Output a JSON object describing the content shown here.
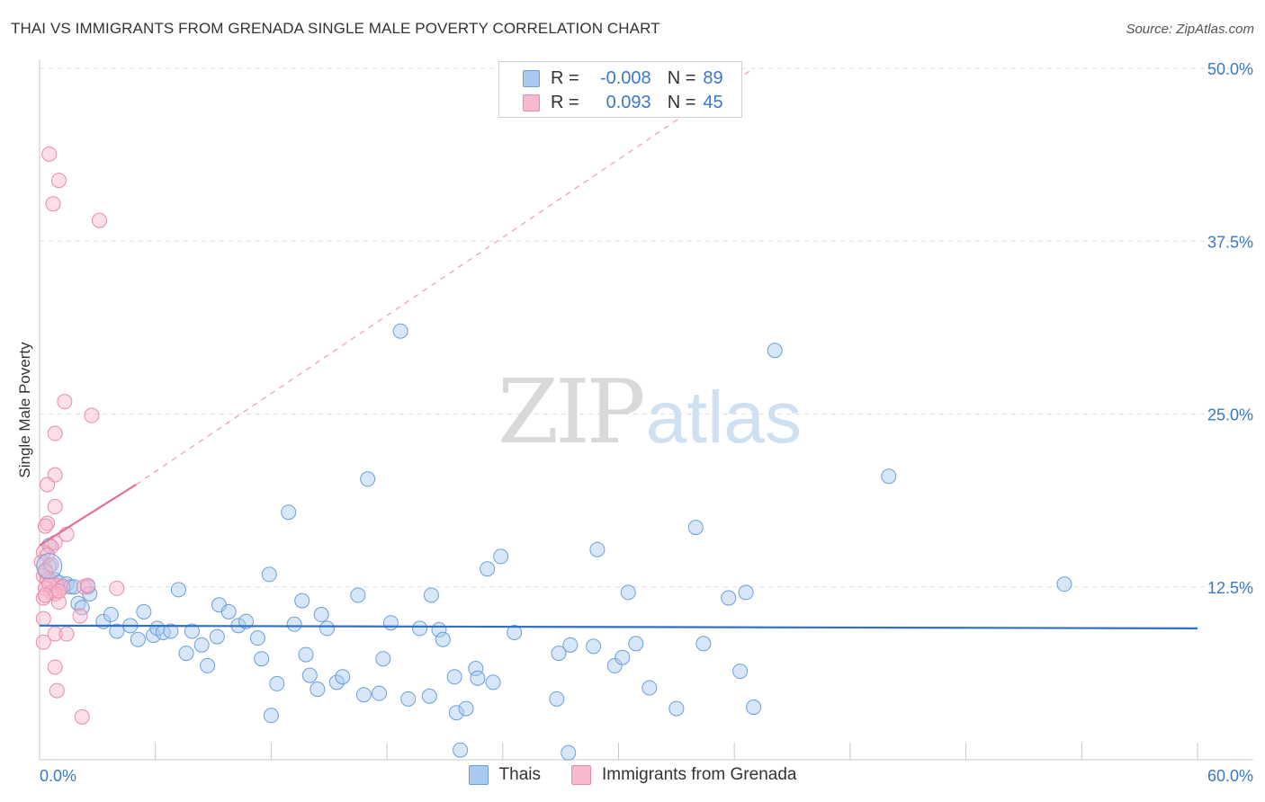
{
  "header": {
    "title": "THAI VS IMMIGRANTS FROM GRENADA SINGLE MALE POVERTY CORRELATION CHART",
    "source": "Source: ZipAtlas.com"
  },
  "legend_stats": [
    {
      "r_label": "R =",
      "r_value": "-0.008",
      "n_label": "N =",
      "n_value": "89",
      "color": "#a9c9f0"
    },
    {
      "r_label": "R =",
      "r_value": "0.093",
      "n_label": "N =",
      "n_value": "45",
      "color": "#f8b9cd"
    }
  ],
  "watermark": {
    "zip": "ZIP",
    "atlas": "atlas"
  },
  "bottom_legend": [
    {
      "label": "Thais",
      "color": "#a9c9f0"
    },
    {
      "label": "Immigrants from Grenada",
      "color": "#f8b9cd"
    }
  ],
  "chart_data": {
    "type": "scatter",
    "title": "THAI VS IMMIGRANTS FROM GRENADA SINGLE MALE POVERTY CORRELATION CHART",
    "xlabel": "",
    "ylabel": "Single Male Poverty",
    "xlim": [
      0,
      60
    ],
    "ylim": [
      0,
      50
    ],
    "x_tick_labels": [
      "0.0%",
      "60.0%"
    ],
    "y_tick_labels": [
      "12.5%",
      "25.0%",
      "37.5%",
      "50.0%"
    ],
    "y_ticks": [
      12.5,
      25,
      37.5,
      50
    ],
    "grid": true,
    "legend_position": "top-center",
    "colors": {
      "thai_fill": "#a9c9f0",
      "thai_stroke": "#6a9fdc",
      "thai_line": "#2f6fcb",
      "grenada_fill": "#f8b9cd",
      "grenada_stroke": "#ea8aaa",
      "grenada_line": "#e0709a",
      "tick_label": "#3a78c9",
      "grid": "#dddddd"
    },
    "series": [
      {
        "name": "Thais",
        "trend": {
          "x": [
            0,
            60
          ],
          "y": [
            9.7,
            9.5
          ],
          "style": "solid"
        },
        "points": [
          [
            0.5,
            15.5
          ],
          [
            0.5,
            14.0
          ],
          [
            0.8,
            13.0
          ],
          [
            1.0,
            12.8
          ],
          [
            1.2,
            12.5
          ],
          [
            1.4,
            12.7
          ],
          [
            1.6,
            12.5
          ],
          [
            1.8,
            12.5
          ],
          [
            2.0,
            11.3
          ],
          [
            2.2,
            11.0
          ],
          [
            2.5,
            12.5
          ],
          [
            2.6,
            12.0
          ],
          [
            3.3,
            10.0
          ],
          [
            3.7,
            10.5
          ],
          [
            4.0,
            9.3
          ],
          [
            4.7,
            9.7
          ],
          [
            5.1,
            8.7
          ],
          [
            5.4,
            10.7
          ],
          [
            5.9,
            9.0
          ],
          [
            6.1,
            9.5
          ],
          [
            6.4,
            9.2
          ],
          [
            6.8,
            9.3
          ],
          [
            7.2,
            12.3
          ],
          [
            7.6,
            7.7
          ],
          [
            7.9,
            9.3
          ],
          [
            8.4,
            8.3
          ],
          [
            8.7,
            6.8
          ],
          [
            9.2,
            8.9
          ],
          [
            9.3,
            11.2
          ],
          [
            9.8,
            10.7
          ],
          [
            10.3,
            9.7
          ],
          [
            10.7,
            10.0
          ],
          [
            11.3,
            8.8
          ],
          [
            11.5,
            7.3
          ],
          [
            11.9,
            13.4
          ],
          [
            12.0,
            3.2
          ],
          [
            12.3,
            5.5
          ],
          [
            12.9,
            17.9
          ],
          [
            13.2,
            9.8
          ],
          [
            13.6,
            11.5
          ],
          [
            13.8,
            7.6
          ],
          [
            14.0,
            6.1
          ],
          [
            14.4,
            5.1
          ],
          [
            14.6,
            10.5
          ],
          [
            14.9,
            9.5
          ],
          [
            15.4,
            5.6
          ],
          [
            15.7,
            6.0
          ],
          [
            16.5,
            11.9
          ],
          [
            16.8,
            4.7
          ],
          [
            17.0,
            20.3
          ],
          [
            17.6,
            4.8
          ],
          [
            17.8,
            7.3
          ],
          [
            18.2,
            9.9
          ],
          [
            18.7,
            31.0
          ],
          [
            19.1,
            4.4
          ],
          [
            19.7,
            9.5
          ],
          [
            20.2,
            4.6
          ],
          [
            20.3,
            11.9
          ],
          [
            20.7,
            9.4
          ],
          [
            20.9,
            8.7
          ],
          [
            21.5,
            6.0
          ],
          [
            21.6,
            3.4
          ],
          [
            21.8,
            0.7
          ],
          [
            22.1,
            3.7
          ],
          [
            22.6,
            6.6
          ],
          [
            22.7,
            5.9
          ],
          [
            23.2,
            13.8
          ],
          [
            23.5,
            5.6
          ],
          [
            23.9,
            14.7
          ],
          [
            24.6,
            9.2
          ],
          [
            26.8,
            4.4
          ],
          [
            26.9,
            7.7
          ],
          [
            27.4,
            0.5
          ],
          [
            27.5,
            8.3
          ],
          [
            28.7,
            8.2
          ],
          [
            28.9,
            15.2
          ],
          [
            29.8,
            6.8
          ],
          [
            30.2,
            7.4
          ],
          [
            30.5,
            12.1
          ],
          [
            30.9,
            8.4
          ],
          [
            31.6,
            5.2
          ],
          [
            33.0,
            3.7
          ],
          [
            34.0,
            16.8
          ],
          [
            34.4,
            8.4
          ],
          [
            35.7,
            11.7
          ],
          [
            36.3,
            6.4
          ],
          [
            36.6,
            12.1
          ],
          [
            37.0,
            3.8
          ],
          [
            38.1,
            29.6
          ],
          [
            44.0,
            20.5
          ],
          [
            53.1,
            12.7
          ]
        ]
      },
      {
        "name": "Immigrants from Grenada",
        "trend": {
          "x": [
            0,
            5
          ],
          "y": [
            15.5,
            19.9
          ],
          "style": "solid",
          "dashed_extension": {
            "x": [
              5,
              37
            ],
            "y": [
              19.9,
              50
            ]
          }
        },
        "points": [
          [
            0.5,
            43.8
          ],
          [
            1.0,
            41.9
          ],
          [
            0.7,
            40.2
          ],
          [
            3.1,
            39.0
          ],
          [
            1.3,
            25.9
          ],
          [
            2.7,
            24.9
          ],
          [
            0.8,
            23.6
          ],
          [
            0.8,
            20.6
          ],
          [
            0.4,
            19.9
          ],
          [
            0.8,
            18.3
          ],
          [
            0.4,
            17.1
          ],
          [
            0.3,
            16.9
          ],
          [
            1.4,
            16.3
          ],
          [
            0.8,
            15.7
          ],
          [
            0.6,
            15.4
          ],
          [
            0.2,
            15.0
          ],
          [
            0.4,
            14.8
          ],
          [
            0.1,
            14.3
          ],
          [
            0.3,
            13.7
          ],
          [
            0.2,
            13.3
          ],
          [
            0.4,
            13.0
          ],
          [
            0.6,
            12.9
          ],
          [
            0.9,
            12.6
          ],
          [
            1.2,
            12.5
          ],
          [
            0.3,
            12.4
          ],
          [
            0.6,
            12.1
          ],
          [
            0.8,
            12.0
          ],
          [
            2.3,
            12.5
          ],
          [
            2.5,
            12.6
          ],
          [
            4.0,
            12.4
          ],
          [
            0.2,
            11.7
          ],
          [
            1.0,
            11.4
          ],
          [
            2.1,
            10.4
          ],
          [
            0.2,
            10.2
          ],
          [
            0.8,
            9.1
          ],
          [
            1.4,
            9.1
          ],
          [
            0.2,
            8.5
          ],
          [
            0.8,
            6.7
          ],
          [
            0.9,
            5.0
          ],
          [
            2.2,
            3.1
          ],
          [
            0.5,
            12.7
          ],
          [
            0.3,
            13.6
          ],
          [
            1.0,
            12.2
          ],
          [
            0.6,
            14.1
          ],
          [
            0.3,
            11.9
          ]
        ]
      }
    ]
  }
}
